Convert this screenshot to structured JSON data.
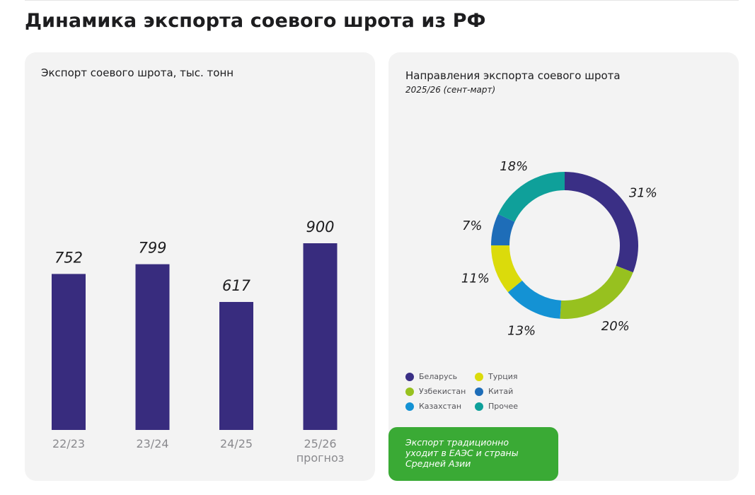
{
  "page": {
    "title": "Динамика экспорта соевого шрота из РФ"
  },
  "colors": {
    "card_bg": "#f3f3f3",
    "bar": "#382c7e",
    "callout": "#3aaa35"
  },
  "left_card": {
    "title": "Экспорт соевого шрота, тыс. тонн"
  },
  "right_card": {
    "title": "Направления экспорта соевого шрота",
    "subtitle": "2025/26 (сент-март)",
    "callout": "Экспорт традиционно уходит в ЕАЭС и страны Средней Азии"
  },
  "chart_data": [
    {
      "type": "bar",
      "title": "Экспорт соевого шрота, тыс. тонн",
      "categories": [
        "22/23",
        "23/24",
        "24/25",
        "25/26 прогноз"
      ],
      "category_lines": [
        [
          "22/23"
        ],
        [
          "23/24"
        ],
        [
          "24/25"
        ],
        [
          "25/26",
          "прогноз"
        ]
      ],
      "values": [
        752,
        799,
        617,
        900
      ],
      "value_labels": [
        "752",
        "799",
        "617",
        "900"
      ],
      "ylim": [
        0,
        900
      ],
      "grid": false,
      "color": "#382c7e"
    },
    {
      "type": "pie",
      "style": "donut",
      "title": "Направления экспорта соевого шрота",
      "subtitle": "2025/26 (сент-март)",
      "legend_position": "bottom-left",
      "slices": [
        {
          "name": "Беларусь",
          "value": 31,
          "label": "31%",
          "color": "#3a2f85"
        },
        {
          "name": "Узбекистан",
          "value": 20,
          "label": "20%",
          "color": "#97c11f"
        },
        {
          "name": "Казахстан",
          "value": 13,
          "label": "13%",
          "color": "#1492d4"
        },
        {
          "name": "Турция",
          "value": 11,
          "label": "11%",
          "color": "#dbdb0b"
        },
        {
          "name": "Китай",
          "value": 7,
          "label": "7%",
          "color": "#1e6db8"
        },
        {
          "name": "Прочее",
          "value": 18,
          "label": "18%",
          "color": "#0fa09a"
        }
      ]
    }
  ]
}
